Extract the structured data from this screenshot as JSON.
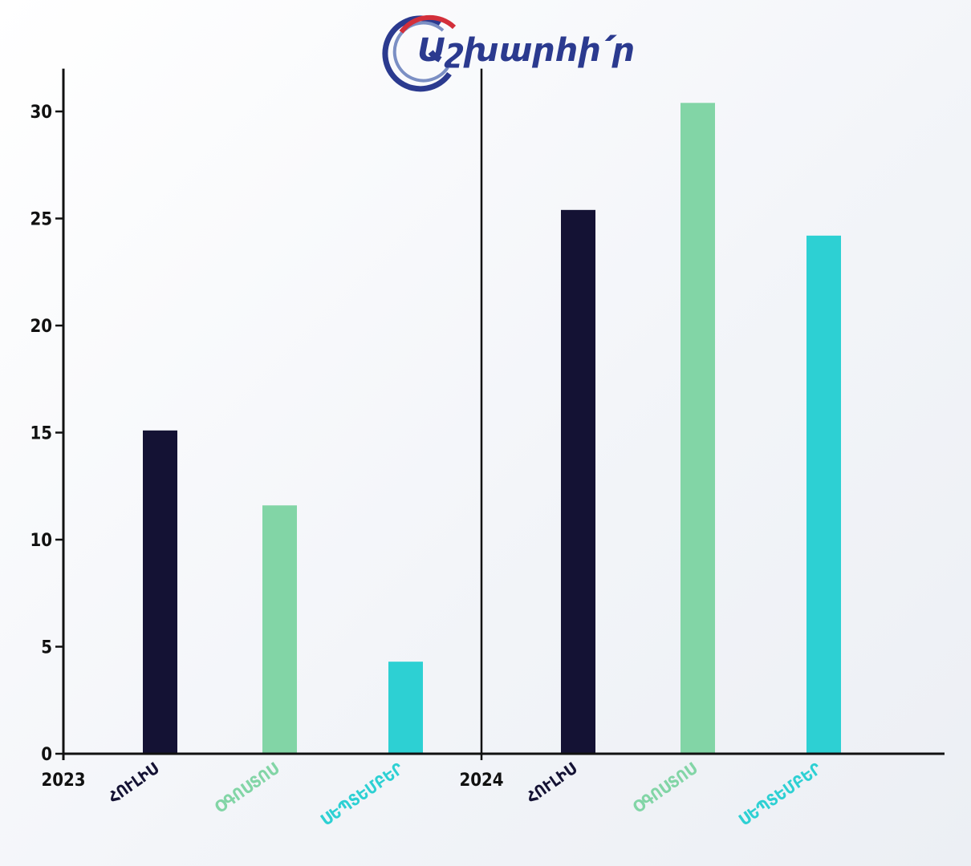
{
  "logo": {
    "text": "Աշխարհի՛ր"
  },
  "colors": {
    "axis": "#111111",
    "logo_blue": "#2b3a8f",
    "logo_red": "#d32f3a",
    "logo_light": "#7b8fc4"
  },
  "chart_data": {
    "type": "bar",
    "ylim": [
      0,
      32
    ],
    "yticks": [
      0,
      5,
      10,
      15,
      20,
      25,
      30
    ],
    "grid": false,
    "legend": "none",
    "groups": [
      {
        "label": "2023",
        "bars": [
          {
            "category": "ՀՈՒԼԻՍ",
            "value": 15.1,
            "color": "#141234"
          },
          {
            "category": "ՕԳՈՍՏՈՍ",
            "value": 11.6,
            "color": "#82d5a6"
          },
          {
            "category": "ՍԵՊՏԵՄԲԵՐ",
            "value": 4.3,
            "color": "#2dd0d3"
          }
        ]
      },
      {
        "label": "2024",
        "bars": [
          {
            "category": "ՀՈՒԼԻՍ",
            "value": 25.4,
            "color": "#141234"
          },
          {
            "category": "ՕԳՈՍՏՈՍ",
            "value": 30.4,
            "color": "#82d5a6"
          },
          {
            "category": "ՍԵՊՏԵՄԲԵՐ",
            "value": 24.2,
            "color": "#2dd0d3"
          }
        ]
      }
    ]
  }
}
